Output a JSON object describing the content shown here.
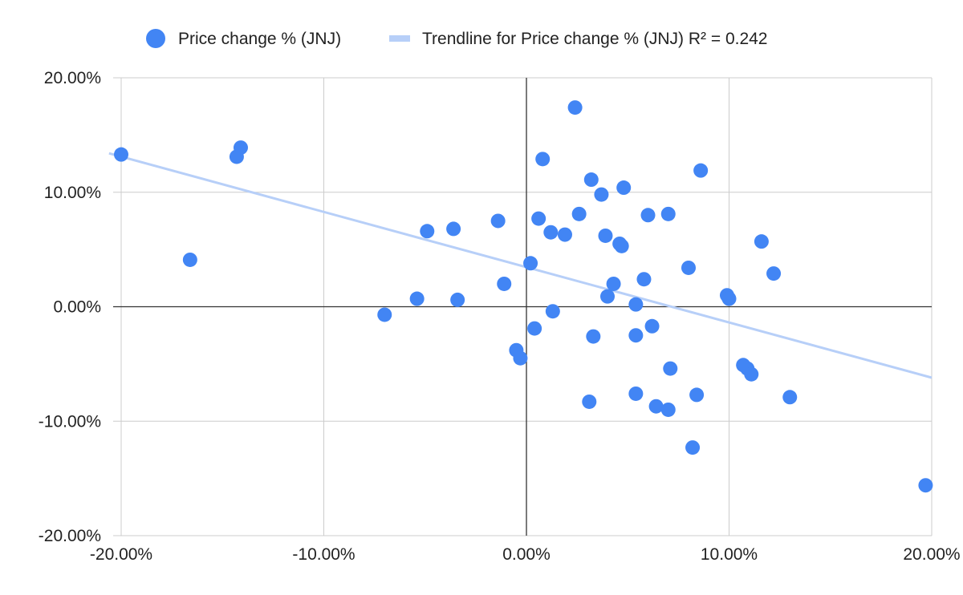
{
  "chart_data": {
    "type": "scatter",
    "title": "",
    "xlabel": "",
    "ylabel": "",
    "xlim": [
      -0.2,
      0.2
    ],
    "ylim": [
      -0.2,
      0.2
    ],
    "x_ticks": [
      -0.2,
      -0.1,
      0,
      0.1,
      0.2
    ],
    "y_ticks": [
      -0.2,
      -0.1,
      0,
      0.1,
      0.2
    ],
    "x_tick_labels": [
      "-20.00%",
      "-10.00%",
      "0.00%",
      "10.00%",
      "20.00%"
    ],
    "y_tick_labels": [
      "-20.00%",
      "-10.00%",
      "0.00%",
      "10.00%",
      "20.00%"
    ],
    "grid": true,
    "legend_position": "top",
    "series": [
      {
        "name": "Price change % (JNJ)",
        "color": "#4285f4",
        "points": [
          [
            -0.2,
            0.133
          ],
          [
            -0.166,
            0.041
          ],
          [
            -0.141,
            0.139
          ],
          [
            -0.143,
            0.131
          ],
          [
            -0.07,
            -0.007
          ],
          [
            -0.054,
            0.007
          ],
          [
            -0.049,
            0.066
          ],
          [
            -0.036,
            0.068
          ],
          [
            -0.034,
            0.006
          ],
          [
            -0.014,
            0.075
          ],
          [
            -0.011,
            0.02
          ],
          [
            -0.005,
            -0.038
          ],
          [
            -0.003,
            -0.045
          ],
          [
            0.002,
            0.038
          ],
          [
            0.004,
            -0.019
          ],
          [
            0.006,
            0.077
          ],
          [
            0.008,
            0.129
          ],
          [
            0.012,
            0.065
          ],
          [
            0.013,
            -0.004
          ],
          [
            0.019,
            0.063
          ],
          [
            0.024,
            0.174
          ],
          [
            0.026,
            0.081
          ],
          [
            0.031,
            -0.083
          ],
          [
            0.032,
            0.111
          ],
          [
            0.033,
            -0.026
          ],
          [
            0.037,
            0.098
          ],
          [
            0.039,
            0.062
          ],
          [
            0.04,
            0.009
          ],
          [
            0.043,
            0.02
          ],
          [
            0.046,
            0.055
          ],
          [
            0.047,
            0.053
          ],
          [
            0.048,
            0.104
          ],
          [
            0.054,
            -0.076
          ],
          [
            0.054,
            0.002
          ],
          [
            0.054,
            -0.025
          ],
          [
            0.058,
            0.024
          ],
          [
            0.06,
            0.08
          ],
          [
            0.062,
            -0.017
          ],
          [
            0.064,
            -0.087
          ],
          [
            0.07,
            0.081
          ],
          [
            0.07,
            -0.09
          ],
          [
            0.071,
            -0.054
          ],
          [
            0.08,
            0.034
          ],
          [
            0.082,
            -0.123
          ],
          [
            0.084,
            -0.077
          ],
          [
            0.086,
            0.119
          ],
          [
            0.099,
            0.01
          ],
          [
            0.1,
            0.007
          ],
          [
            0.107,
            -0.051
          ],
          [
            0.109,
            -0.054
          ],
          [
            0.111,
            -0.059
          ],
          [
            0.116,
            0.057
          ],
          [
            0.122,
            0.029
          ],
          [
            0.13,
            -0.079
          ],
          [
            0.197,
            -0.156
          ]
        ]
      }
    ],
    "trendline": {
      "name": "Trendline for Price change % (JNJ) R² = 0.242",
      "color": "#b7cff8",
      "r_squared": 0.242,
      "endpoints": [
        [
          -0.206,
          0.134
        ],
        [
          0.2,
          -0.062
        ]
      ]
    }
  }
}
